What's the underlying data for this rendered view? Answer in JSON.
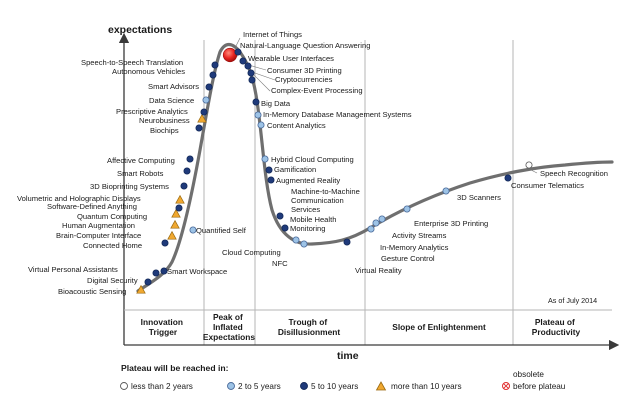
{
  "axes": {
    "y_label": "expectations",
    "x_label": "time"
  },
  "note": "As of July 2014",
  "phases": [
    {
      "lines": [
        "Innovation",
        "Trigger"
      ]
    },
    {
      "lines": [
        "Peak of",
        "Inflated",
        "Expectations"
      ]
    },
    {
      "lines": [
        "Trough of",
        "Disillusionment"
      ]
    },
    {
      "lines": [
        "Slope of Enlightenment"
      ]
    },
    {
      "lines": [
        "Plateau of",
        "Productivity"
      ]
    }
  ],
  "legend": {
    "title": "Plateau will be reached in:",
    "items": [
      {
        "label": "less than 2 years",
        "symbol": "circle",
        "color": "#ffffff"
      },
      {
        "label": "2 to 5 years",
        "symbol": "circle",
        "color": "#9dc3e6"
      },
      {
        "label": "5 to 10 years",
        "symbol": "circle",
        "color": "#1f3a7a"
      },
      {
        "label": "more than 10 years",
        "symbol": "triangle",
        "color": "#f0a830"
      },
      {
        "label": "obsolete",
        "label2": "before plateau",
        "symbol": "cross-circle",
        "color": "#e03030"
      }
    ]
  },
  "technologies": [
    {
      "name": "Bioacoustic Sensing",
      "cat": "more10"
    },
    {
      "name": "Digital Security",
      "cat": "5to10"
    },
    {
      "name": "Virtual Personal Assistants",
      "cat": "5to10"
    },
    {
      "name": "Smart Workspace",
      "cat": "5to10"
    },
    {
      "name": "Connected Home",
      "cat": "5to10"
    },
    {
      "name": "Quantified Self",
      "cat": "2to5"
    },
    {
      "name": "Brain-Computer Interface",
      "cat": "more10"
    },
    {
      "name": "Human Augmentation",
      "cat": "more10"
    },
    {
      "name": "Quantum Computing",
      "cat": "more10"
    },
    {
      "name": "Software-Defined Anything",
      "cat": "5to10"
    },
    {
      "name": "Volumetric and Holographic Displays",
      "cat": "more10"
    },
    {
      "name": "3D Bioprinting Systems",
      "cat": "5to10"
    },
    {
      "name": "Smart Robots",
      "cat": "5to10"
    },
    {
      "name": "Affective Computing",
      "cat": "5to10"
    },
    {
      "name": "Biochips",
      "cat": "5to10"
    },
    {
      "name": "Neurobusiness",
      "cat": "more10"
    },
    {
      "name": "Prescriptive Analytics",
      "cat": "5to10"
    },
    {
      "name": "Data Science",
      "cat": "2to5"
    },
    {
      "name": "Smart Advisors",
      "cat": "5to10"
    },
    {
      "name": "Autonomous Vehicles",
      "cat": "5to10"
    },
    {
      "name": "Speech-to-Speech Translation",
      "cat": "5to10"
    },
    {
      "name": "Internet of Things",
      "cat": "5to10"
    },
    {
      "name": "Natural-Language Question Answering",
      "cat": "5to10"
    },
    {
      "name": "Wearable User Interfaces",
      "cat": "5to10"
    },
    {
      "name": "Consumer 3D Printing",
      "cat": "5to10"
    },
    {
      "name": "Cryptocurrencies",
      "cat": "5to10"
    },
    {
      "name": "Complex-Event Processing",
      "cat": "5to10"
    },
    {
      "name": "Big Data",
      "cat": "5to10"
    },
    {
      "name": "In-Memory Database Management Systems",
      "cat": "2to5"
    },
    {
      "name": "Content Analytics",
      "cat": "2to5"
    },
    {
      "name": "Hybrid Cloud Computing",
      "cat": "2to5"
    },
    {
      "name": "Gamification",
      "cat": "5to10"
    },
    {
      "name": "Augmented Reality",
      "cat": "5to10"
    },
    {
      "name": "Machine-to-Machine Communication Services",
      "lines": [
        "Machine-to-Machine",
        "Communication",
        "Services"
      ],
      "cat": "5to10"
    },
    {
      "name": "Mobile Health Monitoring",
      "lines": [
        "Mobile Health",
        "Monitoring"
      ],
      "cat": "5to10"
    },
    {
      "name": "Cloud Computing",
      "cat": "2to5"
    },
    {
      "name": "NFC",
      "cat": "2to5"
    },
    {
      "name": "Virtual Reality",
      "cat": "5to10"
    },
    {
      "name": "Gesture Control",
      "cat": "2to5"
    },
    {
      "name": "In-Memory Analytics",
      "cat": "2to5"
    },
    {
      "name": "Activity Streams",
      "cat": "2to5"
    },
    {
      "name": "Enterprise 3D Printing",
      "cat": "2to5"
    },
    {
      "name": "3D Scanners",
      "cat": "2to5"
    },
    {
      "name": "Consumer Telematics",
      "cat": "5to10"
    },
    {
      "name": "Speech Recognition",
      "cat": "lt2"
    }
  ],
  "highlight": "Internet of Things",
  "colors": {
    "curve": "#6f6f6f",
    "lt2": "#ffffff",
    "2to5": "#9dc3e6",
    "5to10": "#1f3a7a",
    "more10": "#f0a830",
    "highlight": "#e8231f",
    "divider": "#b5b5b5"
  }
}
